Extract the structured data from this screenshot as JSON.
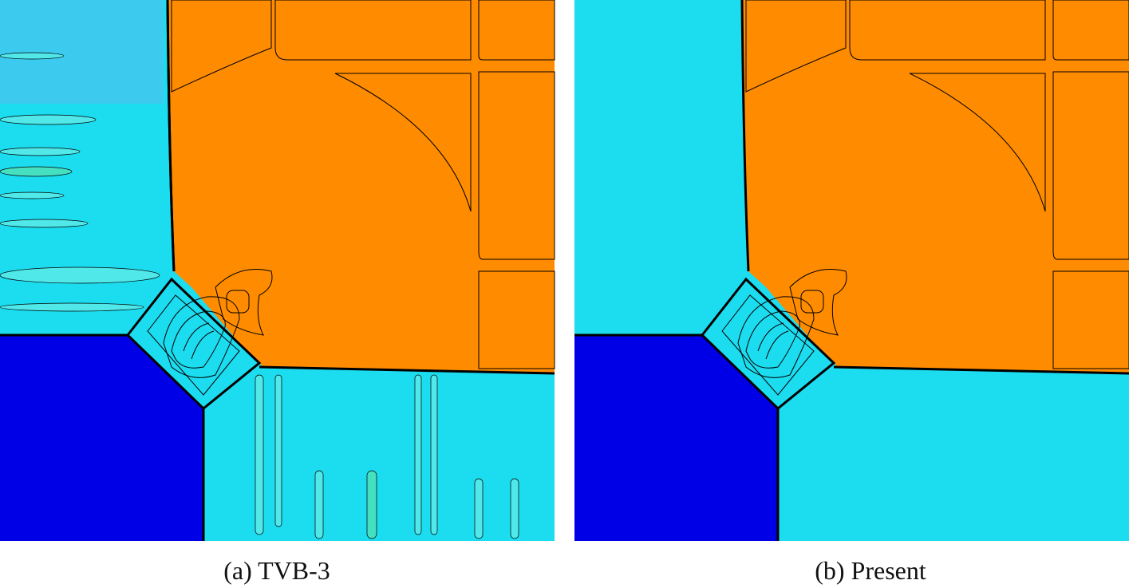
{
  "panels": [
    {
      "caption": "(a) TVB-3"
    },
    {
      "caption": "(b) Present"
    }
  ]
}
